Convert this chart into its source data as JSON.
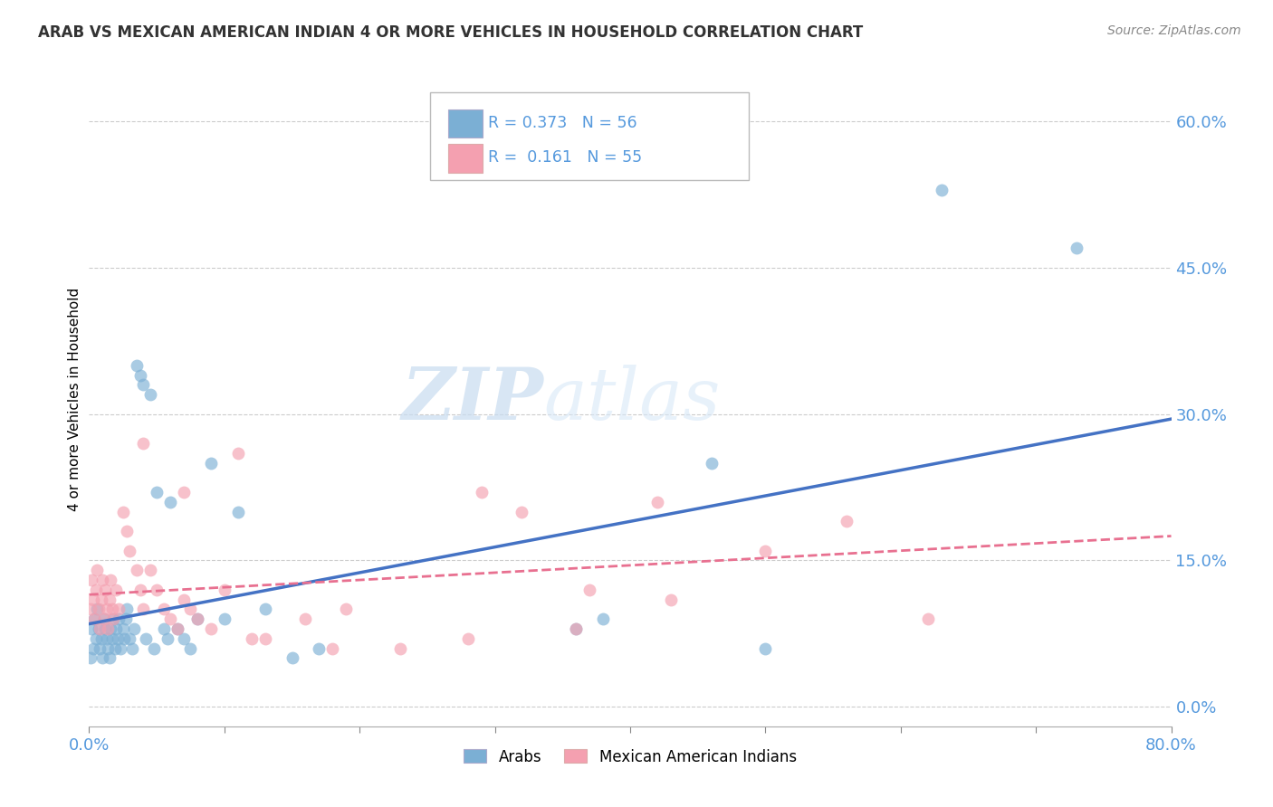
{
  "title": "ARAB VS MEXICAN AMERICAN INDIAN 4 OR MORE VEHICLES IN HOUSEHOLD CORRELATION CHART",
  "source": "Source: ZipAtlas.com",
  "ylabel": "4 or more Vehicles in Household",
  "xlim": [
    0.0,
    0.8
  ],
  "ylim": [
    -0.02,
    0.65
  ],
  "yticks": [
    0.0,
    0.15,
    0.3,
    0.45,
    0.6
  ],
  "ytick_labels": [
    "0.0%",
    "15.0%",
    "30.0%",
    "45.0%",
    "60.0%"
  ],
  "xticks": [
    0.0,
    0.1,
    0.2,
    0.3,
    0.4,
    0.5,
    0.6,
    0.7,
    0.8
  ],
  "xtick_labels": [
    "0.0%",
    "",
    "",
    "",
    "",
    "",
    "",
    "",
    "80.0%"
  ],
  "arab_R": 0.373,
  "arab_N": 56,
  "mexican_R": 0.161,
  "mexican_N": 55,
  "arab_color": "#7BAFD4",
  "mexican_color": "#F4A0B0",
  "arab_line_color": "#4472C4",
  "mexican_line_color": "#E87090",
  "tick_color": "#5599DD",
  "watermark_color": "#D5E8F5",
  "arab_scatter_x": [
    0.001,
    0.002,
    0.003,
    0.004,
    0.005,
    0.006,
    0.007,
    0.008,
    0.009,
    0.01,
    0.011,
    0.012,
    0.013,
    0.014,
    0.015,
    0.016,
    0.017,
    0.018,
    0.019,
    0.02,
    0.021,
    0.022,
    0.023,
    0.025,
    0.026,
    0.027,
    0.028,
    0.03,
    0.032,
    0.033,
    0.035,
    0.038,
    0.04,
    0.042,
    0.045,
    0.048,
    0.05,
    0.055,
    0.058,
    0.06,
    0.065,
    0.07,
    0.075,
    0.08,
    0.09,
    0.1,
    0.11,
    0.13,
    0.15,
    0.17,
    0.36,
    0.38,
    0.46,
    0.5,
    0.63,
    0.73
  ],
  "arab_scatter_y": [
    0.05,
    0.08,
    0.06,
    0.09,
    0.07,
    0.1,
    0.08,
    0.06,
    0.07,
    0.05,
    0.09,
    0.08,
    0.07,
    0.06,
    0.05,
    0.08,
    0.07,
    0.09,
    0.06,
    0.08,
    0.07,
    0.09,
    0.06,
    0.08,
    0.07,
    0.09,
    0.1,
    0.07,
    0.06,
    0.08,
    0.35,
    0.34,
    0.33,
    0.07,
    0.32,
    0.06,
    0.22,
    0.08,
    0.07,
    0.21,
    0.08,
    0.07,
    0.06,
    0.09,
    0.25,
    0.09,
    0.2,
    0.1,
    0.05,
    0.06,
    0.08,
    0.09,
    0.25,
    0.06,
    0.53,
    0.47
  ],
  "mexican_scatter_x": [
    0.001,
    0.002,
    0.003,
    0.004,
    0.005,
    0.006,
    0.007,
    0.008,
    0.009,
    0.01,
    0.011,
    0.012,
    0.013,
    0.014,
    0.015,
    0.016,
    0.017,
    0.018,
    0.02,
    0.022,
    0.025,
    0.028,
    0.03,
    0.035,
    0.038,
    0.04,
    0.045,
    0.05,
    0.055,
    0.06,
    0.065,
    0.07,
    0.075,
    0.08,
    0.09,
    0.1,
    0.11,
    0.13,
    0.16,
    0.19,
    0.23,
    0.29,
    0.32,
    0.37,
    0.42,
    0.5,
    0.56,
    0.62,
    0.43,
    0.36,
    0.28,
    0.18,
    0.12,
    0.07,
    0.04
  ],
  "mexican_scatter_y": [
    0.1,
    0.13,
    0.11,
    0.09,
    0.12,
    0.14,
    0.1,
    0.08,
    0.11,
    0.13,
    0.09,
    0.12,
    0.1,
    0.08,
    0.11,
    0.13,
    0.1,
    0.09,
    0.12,
    0.1,
    0.2,
    0.18,
    0.16,
    0.14,
    0.12,
    0.1,
    0.14,
    0.12,
    0.1,
    0.09,
    0.08,
    0.11,
    0.1,
    0.09,
    0.08,
    0.12,
    0.26,
    0.07,
    0.09,
    0.1,
    0.06,
    0.22,
    0.2,
    0.12,
    0.21,
    0.16,
    0.19,
    0.09,
    0.11,
    0.08,
    0.07,
    0.06,
    0.07,
    0.22,
    0.27
  ],
  "arab_line_x0": 0.0,
  "arab_line_y0": 0.085,
  "arab_line_x1": 0.8,
  "arab_line_y1": 0.295,
  "mex_line_x0": 0.0,
  "mex_line_y0": 0.115,
  "mex_line_x1": 0.8,
  "mex_line_y1": 0.175
}
